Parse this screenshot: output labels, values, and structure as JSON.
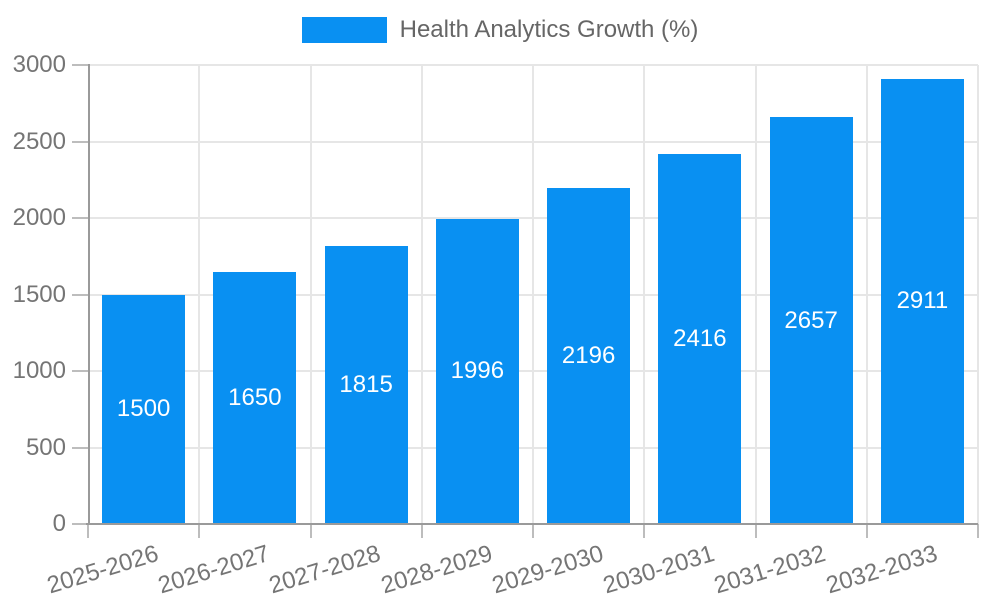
{
  "colors": {
    "bar": "#0990f2",
    "grid": "#e6e6e6",
    "axis": "#9a9a9a",
    "tick": "#bdbdbd",
    "tick_label": "#757575",
    "value_label": "#ffffff",
    "legend_text": "#666666",
    "background": "#ffffff"
  },
  "chart_data": {
    "type": "bar",
    "title": "Health Analytics Growth (%)",
    "legend": {
      "position": "top-center",
      "entries": [
        {
          "label": "Health Analytics Growth (%)",
          "color": "#0990f2"
        }
      ]
    },
    "categories": [
      "2025-2026",
      "2026-2027",
      "2027-2028",
      "2028-2029",
      "2029-2030",
      "2030-2031",
      "2031-2032",
      "2032-2033"
    ],
    "values": [
      1500,
      1650,
      1815,
      1996,
      2196,
      2416,
      2657,
      2911
    ],
    "value_labels_style": "inside-center-white",
    "xlabel": "",
    "ylabel": "",
    "ylim": [
      0,
      3000
    ],
    "yticks": [
      0,
      500,
      1000,
      1500,
      2000,
      2500,
      3000
    ],
    "grid": true,
    "x_tick_label_rotation_deg": -17
  }
}
